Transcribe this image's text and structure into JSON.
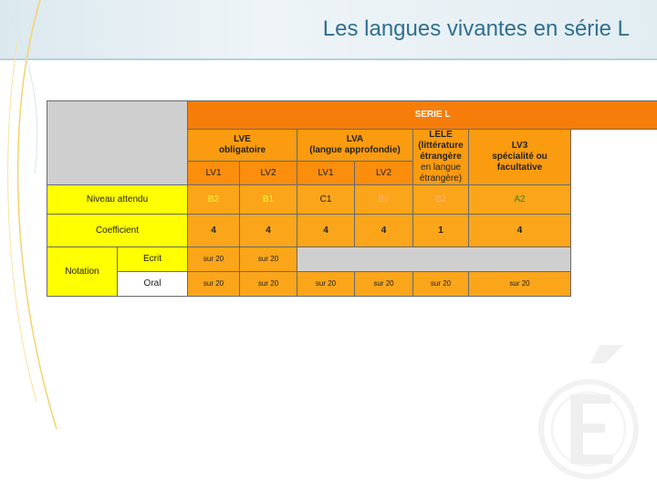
{
  "page": {
    "title": "Les langues vivantes en série L"
  },
  "table": {
    "serie": "SERIE L",
    "groups": {
      "lve_line1": "LVE",
      "lve_line2": "obligatoire",
      "lva_line1": "LVA",
      "lva_line2": "(langue approfondie)",
      "lele_line1": "LELE",
      "lele_line2": "(littérature étrangère",
      "lele_line3": "en langue étrangère)",
      "lv3_line1": "LV3",
      "lv3_line2": "spécialité ou facultative"
    },
    "subheaders": [
      "LV1",
      "LV2",
      "LV1",
      "LV2"
    ],
    "rows": {
      "niveau_label": "Niveau attendu",
      "niveau": [
        "B2",
        "B1",
        "C1",
        "B2",
        "B2",
        "A2"
      ],
      "coef_label": "Coefficient",
      "coef": [
        "4",
        "4",
        "4",
        "4",
        "1",
        "4"
      ],
      "notation_label": "Notation",
      "ecrit_label": "Ecrit",
      "ecrit": [
        "sur 20",
        "sur 20"
      ],
      "oral_label": "Oral",
      "oral": [
        "sur 20",
        "sur 20",
        "sur 20",
        "sur 20",
        "sur 20",
        "sur 20"
      ]
    }
  },
  "colors": {
    "title": "#2f6f93",
    "header_orange": "#f77d0a",
    "label_yellow": "#ffff00",
    "row_orange": "#faa51a"
  }
}
